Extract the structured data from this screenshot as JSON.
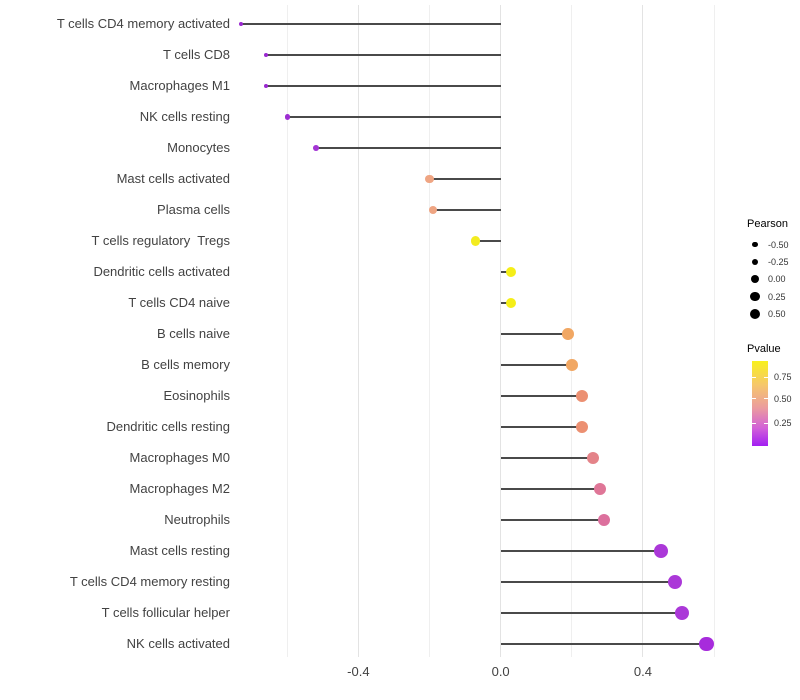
{
  "chart_data": {
    "type": "lollipop",
    "categories": [
      "T cells CD4 memory activated",
      "T cells CD8",
      "Macrophages M1",
      "NK cells resting",
      "Monocytes",
      "Mast cells activated",
      "Plasma cells",
      "T cells regulatory  Tregs",
      "Dendritic cells activated",
      "T cells CD4 naive",
      "B cells naive",
      "B cells memory",
      "Eosinophils",
      "Dendritic cells resting",
      "Macrophages M0",
      "Macrophages M2",
      "Neutrophils",
      "Mast cells resting",
      "T cells CD4 memory resting",
      "T cells follicular helper",
      "NK cells activated"
    ],
    "series": [
      {
        "name": "Pearson",
        "values": [
          -0.73,
          -0.66,
          -0.66,
          -0.6,
          -0.52,
          -0.2,
          -0.19,
          -0.07,
          0.03,
          0.03,
          0.19,
          0.2,
          0.23,
          0.23,
          0.26,
          0.28,
          0.29,
          0.45,
          0.49,
          0.51,
          0.58
        ]
      }
    ],
    "point_colors": [
      "#9A28D0",
      "#9A28D0",
      "#9A28D0",
      "#9D2ED2",
      "#A335D4",
      "#EFA583",
      "#EFA583",
      "#F3EC20",
      "#F5EE18",
      "#F5EE18",
      "#F1A763",
      "#F1A763",
      "#EC9072",
      "#EC9072",
      "#E48389",
      "#DF7697",
      "#DC709D",
      "#AB38D8",
      "#AB38D8",
      "#AB38D8",
      "#A72BDC"
    ],
    "x_axis": {
      "range": [
        -0.744,
        0.611
      ],
      "ticks": [
        {
          "value": -0.4,
          "label": "-0.4"
        },
        {
          "value": 0.0,
          "label": "0.0"
        },
        {
          "value": 0.4,
          "label": "0.4"
        }
      ],
      "gridlines_major": [
        -0.4,
        0.0,
        0.4
      ],
      "gridlines_minor": [
        -0.6,
        -0.2,
        0.2,
        0.6
      ]
    },
    "legend_size": {
      "title": "Pearson",
      "entries": [
        {
          "value": -0.5,
          "label": "-0.50"
        },
        {
          "value": -0.25,
          "label": "-0.25"
        },
        {
          "value": 0.0,
          "label": "0.00"
        },
        {
          "value": 0.25,
          "label": "0.25"
        },
        {
          "value": 0.5,
          "label": "0.50"
        }
      ]
    },
    "legend_color": {
      "title": "Pvalue",
      "tick_labels": [
        "0.75",
        "0.50",
        "0.25"
      ],
      "gradient_stops": [
        {
          "color": "#F8F11E",
          "pos": 0
        },
        {
          "color": "#F6C76B",
          "pos": 28
        },
        {
          "color": "#EB9C9E",
          "pos": 55
        },
        {
          "color": "#D260D8",
          "pos": 79
        },
        {
          "color": "#A21FF2",
          "pos": 100
        }
      ]
    }
  },
  "colors": {
    "stick": "#4a4a4a",
    "gridline_major": "#e3e3e3",
    "gridline_minor": "#efefef",
    "axis_text": "#424242",
    "legend_dot": "#000000",
    "background": "#ffffff"
  }
}
